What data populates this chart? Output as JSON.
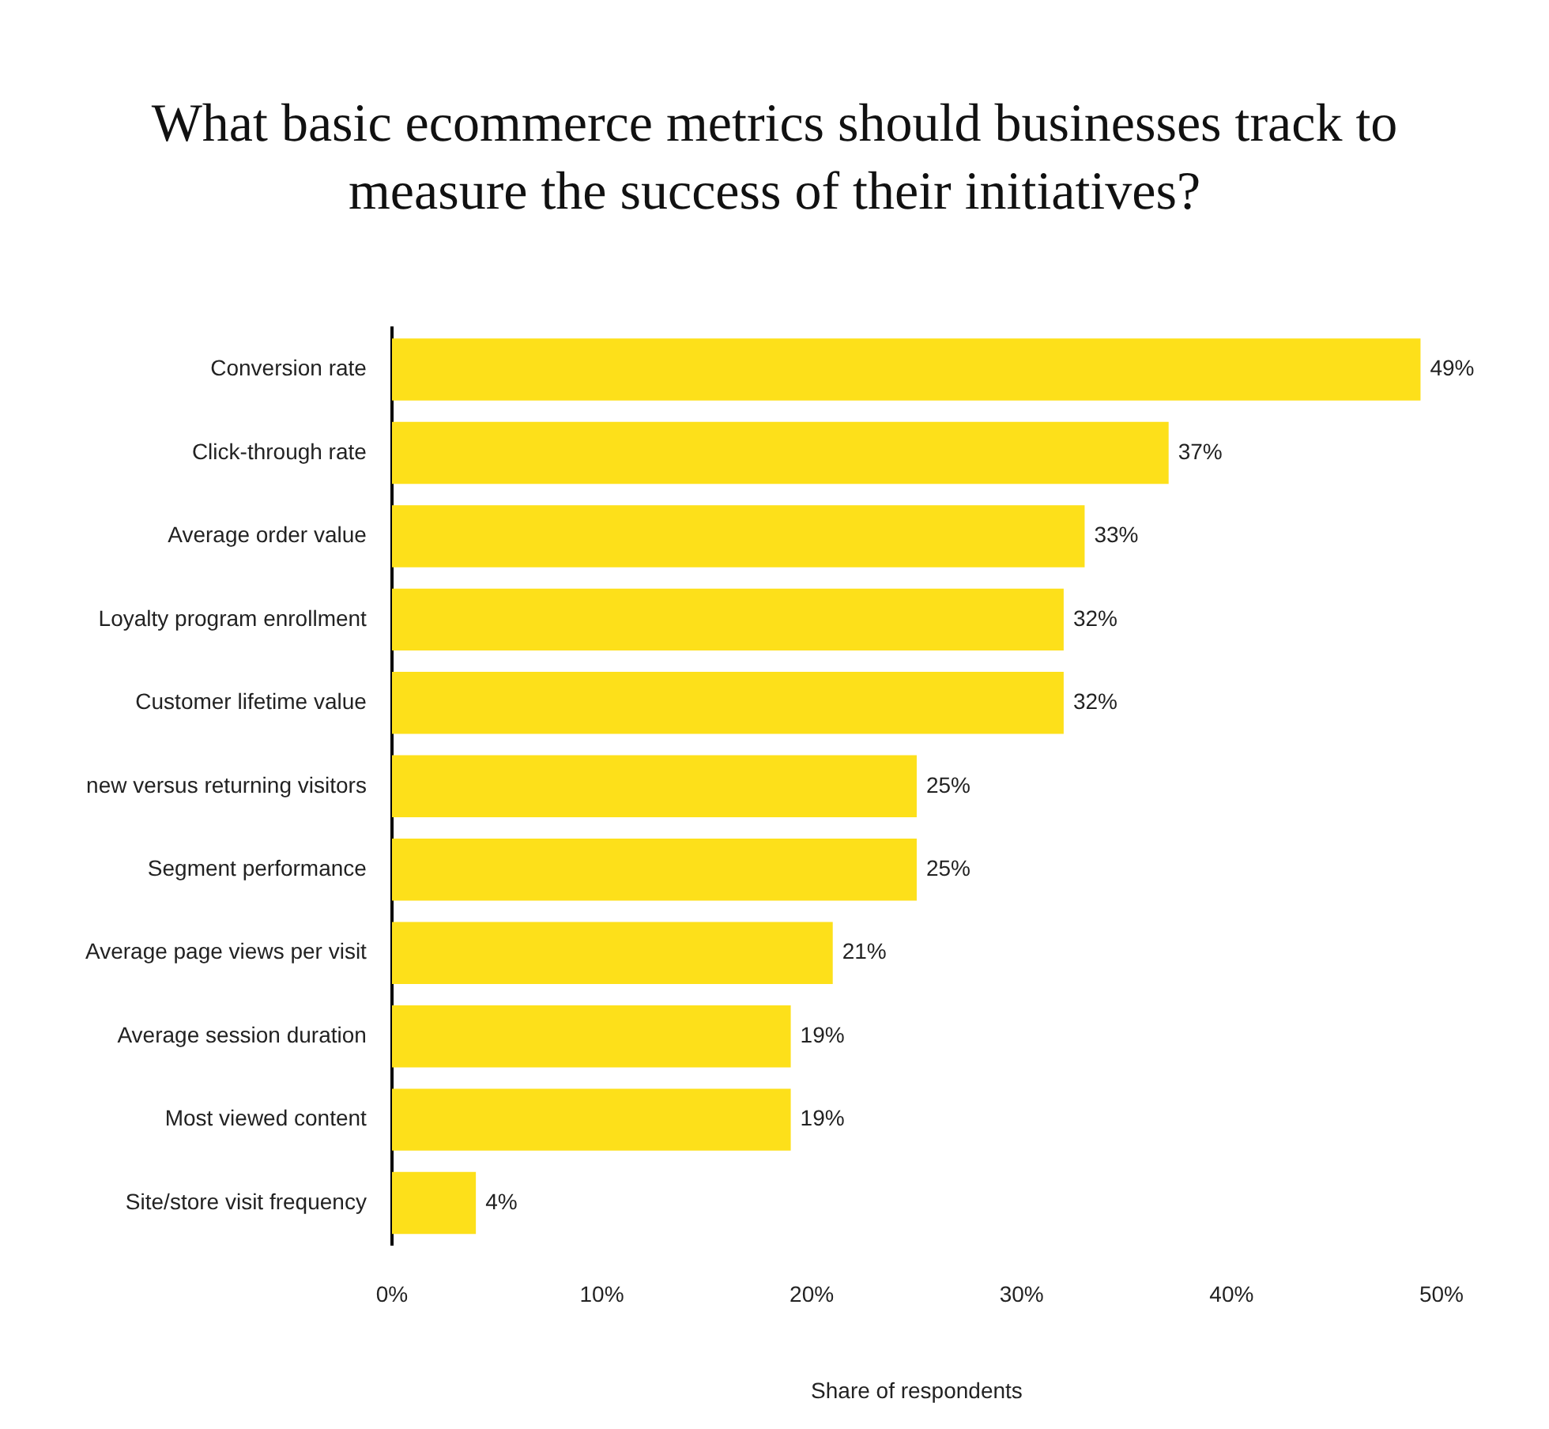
{
  "chart_data": {
    "type": "bar",
    "orientation": "horizontal",
    "title": "What basic ecommerce metrics should businesses track to measure the success of their initiatives?",
    "xlabel": "Share of respondents",
    "categories": [
      "Conversion rate",
      "Click-through rate",
      "Average order value",
      "Loyalty program enrollment",
      "Customer lifetime value",
      "new versus returning visitors",
      "Segment performance",
      "Average page views per visit",
      "Average session duration",
      "Most viewed content",
      "Site/store visit frequency"
    ],
    "values": [
      49,
      37,
      33,
      32,
      32,
      25,
      25,
      21,
      19,
      19,
      4
    ],
    "value_labels": [
      "49%",
      "37%",
      "33%",
      "32%",
      "32%",
      "25%",
      "25%",
      "21%",
      "19%",
      "19%",
      "4%"
    ],
    "color": "#fde01a",
    "xlim": [
      0,
      50
    ],
    "xticks": [
      {
        "value": 0,
        "label": "0%"
      },
      {
        "value": 10,
        "label": "10%"
      },
      {
        "value": 20,
        "label": "20%"
      },
      {
        "value": 30,
        "label": "30%"
      },
      {
        "value": 40,
        "label": "40%"
      },
      {
        "value": 50,
        "label": "50%"
      }
    ]
  }
}
